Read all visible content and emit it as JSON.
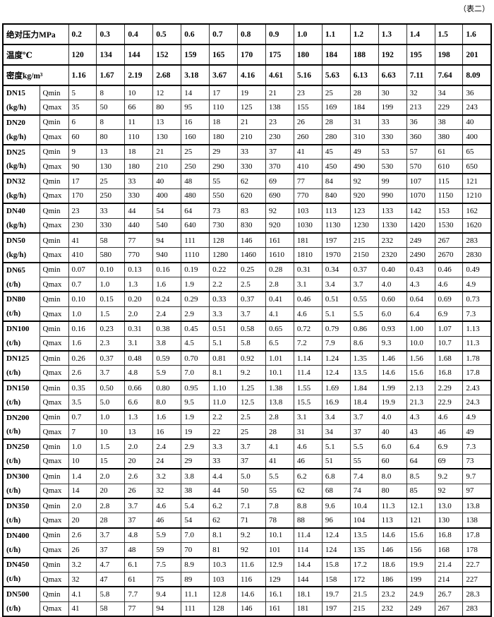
{
  "caption": "（表二）",
  "header": {
    "pressure_label": "绝对压力MPa",
    "pressure": [
      "0.2",
      "0.3",
      "0.4",
      "0.5",
      "0.6",
      "0.7",
      "0.8",
      "0.9",
      "1.0",
      "1.1",
      "1.2",
      "1.3",
      "1.4",
      "1.5",
      "1.6"
    ],
    "temperature_label": "温度℃",
    "temperature": [
      "120",
      "134",
      "144",
      "152",
      "159",
      "165",
      "170",
      "175",
      "180",
      "184",
      "188",
      "192",
      "195",
      "198",
      "201"
    ],
    "density_label": "密度kg/m³",
    "density": [
      "1.16",
      "1.67",
      "2.19",
      "2.68",
      "3.18",
      "3.67",
      "4.16",
      "4.61",
      "5.16",
      "5.63",
      "6.13",
      "6.63",
      "7.11",
      "7.64",
      "8.09"
    ]
  },
  "qmin_label": "Qmin",
  "qmax_label": "Qmax",
  "rows": [
    {
      "dn": "DN15",
      "unit": "(kg/h)",
      "qmin": [
        "5",
        "8",
        "10",
        "12",
        "14",
        "17",
        "19",
        "21",
        "23",
        "25",
        "28",
        "30",
        "32",
        "34",
        "36"
      ],
      "qmax": [
        "35",
        "50",
        "66",
        "80",
        "95",
        "110",
        "125",
        "138",
        "155",
        "169",
        "184",
        "199",
        "213",
        "229",
        "243"
      ]
    },
    {
      "dn": "DN20",
      "unit": "(kg/h)",
      "qmin": [
        "6",
        "8",
        "11",
        "13",
        "16",
        "18",
        "21",
        "23",
        "26",
        "28",
        "31",
        "33",
        "36",
        "38",
        "40"
      ],
      "qmax": [
        "60",
        "80",
        "110",
        "130",
        "160",
        "180",
        "210",
        "230",
        "260",
        "280",
        "310",
        "330",
        "360",
        "380",
        "400"
      ]
    },
    {
      "dn": "DN25",
      "unit": "(kg/h)",
      "qmin": [
        "9",
        "13",
        "18",
        "21",
        "25",
        "29",
        "33",
        "37",
        "41",
        "45",
        "49",
        "53",
        "57",
        "61",
        "65"
      ],
      "qmax": [
        "90",
        "130",
        "180",
        "210",
        "250",
        "290",
        "330",
        "370",
        "410",
        "450",
        "490",
        "530",
        "570",
        "610",
        "650"
      ]
    },
    {
      "dn": "DN32",
      "unit": "(kg/h)",
      "qmin": [
        "17",
        "25",
        "33",
        "40",
        "48",
        "55",
        "62",
        "69",
        "77",
        "84",
        "92",
        "99",
        "107",
        "115",
        "121"
      ],
      "qmax": [
        "170",
        "250",
        "330",
        "400",
        "480",
        "550",
        "620",
        "690",
        "770",
        "840",
        "920",
        "990",
        "1070",
        "1150",
        "1210"
      ]
    },
    {
      "dn": "DN40",
      "unit": "(kg/h)",
      "qmin": [
        "23",
        "33",
        "44",
        "54",
        "64",
        "73",
        "83",
        "92",
        "103",
        "113",
        "123",
        "133",
        "142",
        "153",
        "162"
      ],
      "qmax": [
        "230",
        "330",
        "440",
        "540",
        "640",
        "730",
        "830",
        "920",
        "1030",
        "1130",
        "1230",
        "1330",
        "1420",
        "1530",
        "1620"
      ]
    },
    {
      "dn": "DN50",
      "unit": "(kg/h)",
      "qmin": [
        "41",
        "58",
        "77",
        "94",
        "111",
        "128",
        "146",
        "161",
        "181",
        "197",
        "215",
        "232",
        "249",
        "267",
        "283"
      ],
      "qmax": [
        "410",
        "580",
        "770",
        "940",
        "1110",
        "1280",
        "1460",
        "1610",
        "1810",
        "1970",
        "2150",
        "2320",
        "2490",
        "2670",
        "2830"
      ]
    },
    {
      "dn": "DN65",
      "unit": "(t/h)",
      "qmin": [
        "0.07",
        "0.10",
        "0.13",
        "0.16",
        "0.19",
        "0.22",
        "0.25",
        "0.28",
        "0.31",
        "0.34",
        "0.37",
        "0.40",
        "0.43",
        "0.46",
        "0.49"
      ],
      "qmax": [
        "0.7",
        "1.0",
        "1.3",
        "1.6",
        "1.9",
        "2.2",
        "2.5",
        "2.8",
        "3.1",
        "3.4",
        "3.7",
        "4.0",
        "4.3",
        "4.6",
        "4.9"
      ]
    },
    {
      "dn": "DN80",
      "unit": "(t/h)",
      "qmin": [
        "0.10",
        "0.15",
        "0.20",
        "0.24",
        "0.29",
        "0.33",
        "0.37",
        "0.41",
        "0.46",
        "0.51",
        "0.55",
        "0.60",
        "0.64",
        "0.69",
        "0.73"
      ],
      "qmax": [
        "1.0",
        "1.5",
        "2.0",
        "2.4",
        "2.9",
        "3.3",
        "3.7",
        "4.1",
        "4.6",
        "5.1",
        "5.5",
        "6.0",
        "6.4",
        "6.9",
        "7.3"
      ]
    },
    {
      "dn": "DN100",
      "unit": "(t/h)",
      "qmin": [
        "0.16",
        "0.23",
        "0.31",
        "0.38",
        "0.45",
        "0.51",
        "0.58",
        "0.65",
        "0.72",
        "0.79",
        "0.86",
        "0.93",
        "1.00",
        "1.07",
        "1.13"
      ],
      "qmax": [
        "1.6",
        "2.3",
        "3.1",
        "3.8",
        "4.5",
        "5.1",
        "5.8",
        "6.5",
        "7.2",
        "7.9",
        "8.6",
        "9.3",
        "10.0",
        "10.7",
        "11.3"
      ]
    },
    {
      "dn": "DN125",
      "unit": "(t/h)",
      "qmin": [
        "0.26",
        "0.37",
        "0.48",
        "0.59",
        "0.70",
        "0.81",
        "0.92",
        "1.01",
        "1.14",
        "1.24",
        "1.35",
        "1.46",
        "1.56",
        "1.68",
        "1.78"
      ],
      "qmax": [
        "2.6",
        "3.7",
        "4.8",
        "5.9",
        "7.0",
        "8.1",
        "9.2",
        "10.1",
        "11.4",
        "12.4",
        "13.5",
        "14.6",
        "15.6",
        "16.8",
        "17.8"
      ]
    },
    {
      "dn": "DN150",
      "unit": "(t/h)",
      "qmin": [
        "0.35",
        "0.50",
        "0.66",
        "0.80",
        "0.95",
        "1.10",
        "1.25",
        "1.38",
        "1.55",
        "1.69",
        "1.84",
        "1.99",
        "2.13",
        "2.29",
        "2.43"
      ],
      "qmax": [
        "3.5",
        "5.0",
        "6.6",
        "8.0",
        "9.5",
        "11.0",
        "12.5",
        "13.8",
        "15.5",
        "16.9",
        "18.4",
        "19.9",
        "21.3",
        "22.9",
        "24.3"
      ]
    },
    {
      "dn": "DN200",
      "unit": "(t/h)",
      "qmin": [
        "0.7",
        "1.0",
        "1.3",
        "1.6",
        "1.9",
        "2.2",
        "2.5",
        "2.8",
        "3.1",
        "3.4",
        "3.7",
        "4.0",
        "4.3",
        "4.6",
        "4.9"
      ],
      "qmax": [
        "7",
        "10",
        "13",
        "16",
        "19",
        "22",
        "25",
        "28",
        "31",
        "34",
        "37",
        "40",
        "43",
        "46",
        "49"
      ]
    },
    {
      "dn": "DN250",
      "unit": "(t/h)",
      "qmin": [
        "1.0",
        "1.5",
        "2.0",
        "2.4",
        "2.9",
        "3.3",
        "3.7",
        "4.1",
        "4.6",
        "5.1",
        "5.5",
        "6.0",
        "6.4",
        "6.9",
        "7.3"
      ],
      "qmax": [
        "10",
        "15",
        "20",
        "24",
        "29",
        "33",
        "37",
        "41",
        "46",
        "51",
        "55",
        "60",
        "64",
        "69",
        "73"
      ]
    },
    {
      "dn": "DN300",
      "unit": "(t/h)",
      "qmin": [
        "1.4",
        "2.0",
        "2.6",
        "3.2",
        "3.8",
        "4.4",
        "5.0",
        "5.5",
        "6.2",
        "6.8",
        "7.4",
        "8.0",
        "8.5",
        "9.2",
        "9.7"
      ],
      "qmax": [
        "14",
        "20",
        "26",
        "32",
        "38",
        "44",
        "50",
        "55",
        "62",
        "68",
        "74",
        "80",
        "85",
        "92",
        "97"
      ]
    },
    {
      "dn": "DN350",
      "unit": "(t/h)",
      "qmin": [
        "2.0",
        "2.8",
        "3.7",
        "4.6",
        "5.4",
        "6.2",
        "7.1",
        "7.8",
        "8.8",
        "9.6",
        "10.4",
        "11.3",
        "12.1",
        "13.0",
        "13.8"
      ],
      "qmax": [
        "20",
        "28",
        "37",
        "46",
        "54",
        "62",
        "71",
        "78",
        "88",
        "96",
        "104",
        "113",
        "121",
        "130",
        "138"
      ]
    },
    {
      "dn": "DN400",
      "unit": "(t/h)",
      "qmin": [
        "2.6",
        "3.7",
        "4.8",
        "5.9",
        "7.0",
        "8.1",
        "9.2",
        "10.1",
        "11.4",
        "12.4",
        "13.5",
        "14.6",
        "15.6",
        "16.8",
        "17.8"
      ],
      "qmax": [
        "26",
        "37",
        "48",
        "59",
        "70",
        "81",
        "92",
        "101",
        "114",
        "124",
        "135",
        "146",
        "156",
        "168",
        "178"
      ]
    },
    {
      "dn": "DN450",
      "unit": "(t/h)",
      "qmin": [
        "3.2",
        "4.7",
        "6.1",
        "7.5",
        "8.9",
        "10.3",
        "11.6",
        "12.9",
        "14.4",
        "15.8",
        "17.2",
        "18.6",
        "19.9",
        "21.4",
        "22.7"
      ],
      "qmax": [
        "32",
        "47",
        "61",
        "75",
        "89",
        "103",
        "116",
        "129",
        "144",
        "158",
        "172",
        "186",
        "199",
        "214",
        "227"
      ]
    },
    {
      "dn": "DN500",
      "unit": "(t/h)",
      "qmin": [
        "4.1",
        "5.8",
        "7.7",
        "9.4",
        "11.1",
        "12.8",
        "14.6",
        "16.1",
        "18.1",
        "19.7",
        "21.5",
        "23.2",
        "24.9",
        "26.7",
        "28.3"
      ],
      "qmax": [
        "41",
        "58",
        "77",
        "94",
        "111",
        "128",
        "146",
        "161",
        "181",
        "197",
        "215",
        "232",
        "249",
        "267",
        "283"
      ]
    }
  ]
}
